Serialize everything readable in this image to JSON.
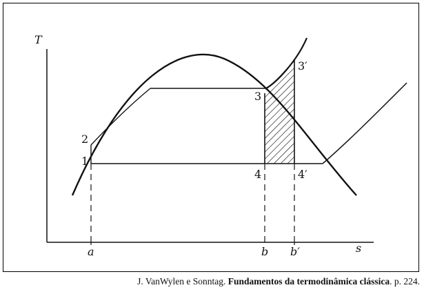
{
  "diagram": {
    "axis_y": "T",
    "axis_x": "s",
    "points": {
      "p1": "1",
      "p2": "2",
      "p3": "3",
      "p3p": "3′",
      "p4": "4",
      "p4p": "4′"
    },
    "x_marks": {
      "a": "a",
      "b": "b",
      "bp": "b′"
    }
  },
  "caption": {
    "author": "J. VanWylen e Sonntag. ",
    "title": "Fundamentos da termodinâmica clássica",
    "pages": ". p. 224."
  },
  "colors": {
    "line": "#111111",
    "background": "#ffffff"
  }
}
